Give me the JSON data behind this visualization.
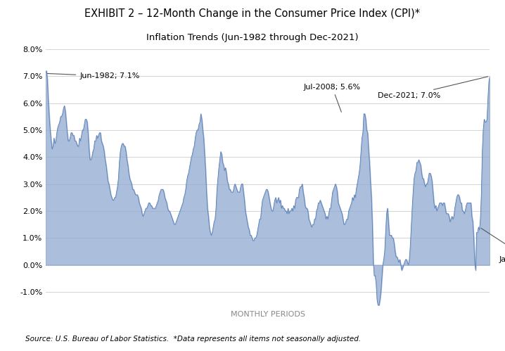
{
  "title1": "EXHIBIT 2 – 12-Month Change in the Consumer Price Index (CPI)*",
  "title2": "Inflation Trends (Jun-1982 through Dec-2021)",
  "xlabel": "MONTHLY PERIODS",
  "source": "Source: U.S. Bureau of Labor Statistics.  *Data represents all items not seasonally adjusted.",
  "ylim": [
    -1.5,
    8.0
  ],
  "yticks": [
    -1.0,
    0.0,
    1.0,
    2.0,
    3.0,
    4.0,
    5.0,
    6.0,
    7.0,
    8.0
  ],
  "fill_color": "#8fa8d0",
  "line_color": "#5b80b8",
  "cpi_data": [
    7.1,
    7.2,
    6.9,
    6.1,
    5.5,
    5.0,
    4.6,
    4.3,
    4.4,
    4.7,
    4.5,
    4.6,
    4.9,
    5.1,
    5.2,
    5.3,
    5.5,
    5.5,
    5.6,
    5.8,
    5.9,
    5.7,
    5.3,
    4.9,
    4.6,
    4.6,
    4.7,
    4.9,
    4.9,
    4.8,
    4.8,
    4.6,
    4.6,
    4.5,
    4.4,
    4.4,
    4.7,
    4.6,
    4.8,
    5.0,
    5.0,
    5.2,
    5.4,
    5.4,
    5.3,
    4.9,
    4.3,
    3.9,
    3.9,
    4.0,
    4.2,
    4.3,
    4.6,
    4.6,
    4.8,
    4.7,
    4.8,
    4.9,
    4.9,
    4.6,
    4.5,
    4.4,
    4.2,
    3.9,
    3.7,
    3.4,
    3.1,
    3.0,
    2.8,
    2.6,
    2.5,
    2.4,
    2.4,
    2.5,
    2.5,
    2.7,
    2.9,
    3.2,
    3.8,
    4.2,
    4.4,
    4.5,
    4.5,
    4.4,
    4.4,
    4.2,
    3.9,
    3.7,
    3.4,
    3.2,
    3.1,
    3.0,
    2.8,
    2.8,
    2.7,
    2.6,
    2.6,
    2.6,
    2.5,
    2.3,
    2.2,
    2.1,
    1.9,
    1.8,
    1.9,
    2.0,
    2.1,
    2.1,
    2.2,
    2.3,
    2.3,
    2.2,
    2.2,
    2.1,
    2.1,
    2.1,
    2.1,
    2.2,
    2.3,
    2.4,
    2.6,
    2.7,
    2.8,
    2.8,
    2.8,
    2.7,
    2.5,
    2.4,
    2.3,
    2.1,
    2.0,
    2.0,
    1.9,
    1.8,
    1.7,
    1.6,
    1.5,
    1.5,
    1.6,
    1.7,
    1.8,
    1.9,
    2.0,
    2.1,
    2.2,
    2.3,
    2.5,
    2.6,
    2.8,
    3.1,
    3.3,
    3.4,
    3.6,
    3.8,
    4.0,
    4.1,
    4.3,
    4.4,
    4.7,
    4.9,
    5.0,
    5.0,
    5.2,
    5.3,
    5.6,
    5.4,
    5.0,
    4.7,
    4.1,
    3.5,
    2.7,
    2.1,
    1.8,
    1.4,
    1.2,
    1.1,
    1.2,
    1.4,
    1.6,
    1.7,
    2.1,
    2.8,
    3.2,
    3.6,
    3.9,
    4.2,
    4.1,
    3.8,
    3.7,
    3.5,
    3.6,
    3.4,
    3.1,
    3.0,
    2.8,
    2.8,
    2.7,
    2.7,
    2.7,
    2.9,
    3.0,
    2.9,
    2.8,
    2.7,
    2.7,
    2.7,
    2.9,
    3.0,
    3.0,
    2.7,
    2.4,
    2.0,
    1.8,
    1.6,
    1.4,
    1.3,
    1.1,
    1.1,
    1.0,
    0.9,
    0.9,
    1.0,
    1.0,
    1.1,
    1.3,
    1.5,
    1.7,
    1.7,
    2.1,
    2.4,
    2.5,
    2.6,
    2.7,
    2.8,
    2.8,
    2.7,
    2.5,
    2.3,
    2.1,
    2.0,
    2.0,
    2.2,
    2.4,
    2.5,
    2.3,
    2.4,
    2.5,
    2.3,
    2.4,
    2.1,
    2.2,
    2.1,
    2.1,
    2.0,
    2.0,
    1.9,
    2.1,
    1.9,
    2.0,
    2.0,
    2.1,
    2.0,
    2.2,
    2.1,
    2.4,
    2.5,
    2.5,
    2.5,
    2.8,
    2.9,
    2.9,
    3.0,
    2.7,
    2.5,
    2.2,
    2.1,
    2.1,
    2.0,
    1.7,
    1.6,
    1.5,
    1.4,
    1.5,
    1.5,
    1.7,
    1.7,
    2.0,
    2.1,
    2.3,
    2.3,
    2.4,
    2.3,
    2.2,
    2.1,
    2.0,
    1.9,
    1.7,
    1.8,
    1.7,
    1.9,
    2.1,
    2.1,
    2.4,
    2.7,
    2.8,
    2.9,
    3.0,
    2.9,
    2.7,
    2.3,
    2.2,
    2.1,
    2.0,
    1.9,
    1.7,
    1.5,
    1.5,
    1.6,
    1.7,
    1.7,
    2.0,
    2.1,
    2.2,
    2.3,
    2.5,
    2.4,
    2.6,
    2.5,
    2.8,
    3.0,
    3.2,
    3.4,
    3.7,
    4.2,
    4.7,
    4.9,
    5.6,
    5.6,
    5.4,
    5.0,
    4.9,
    4.3,
    3.8,
    3.1,
    2.5,
    1.5,
    0.1,
    -0.4,
    -0.4,
    -0.7,
    -1.3,
    -1.5,
    -1.5,
    -1.3,
    -1.0,
    -0.5,
    0.0,
    0.2,
    0.5,
    1.2,
    1.9,
    2.1,
    1.6,
    1.1,
    1.1,
    1.1,
    1.0,
    1.0,
    0.8,
    0.5,
    0.3,
    0.3,
    0.2,
    0.1,
    0.2,
    0.0,
    -0.2,
    -0.1,
    0.0,
    0.1,
    0.2,
    0.2,
    0.1,
    0.0,
    0.2,
    0.7,
    1.4,
    2.1,
    2.7,
    3.2,
    3.4,
    3.5,
    3.8,
    3.8,
    3.9,
    3.8,
    3.7,
    3.4,
    3.2,
    3.2,
    3.0,
    2.9,
    3.0,
    3.0,
    3.2,
    3.4,
    3.4,
    3.3,
    3.1,
    2.7,
    2.3,
    2.1,
    2.2,
    2.0,
    2.1,
    2.2,
    2.3,
    2.3,
    2.3,
    2.2,
    2.3,
    2.3,
    2.1,
    1.9,
    1.9,
    1.9,
    1.8,
    1.6,
    1.7,
    1.8,
    1.7,
    1.8,
    2.1,
    2.3,
    2.5,
    2.6,
    2.6,
    2.5,
    2.3,
    2.3,
    2.0,
    2.0,
    1.9,
    2.0,
    2.2,
    2.3,
    2.3,
    2.3,
    2.3,
    2.3,
    1.8,
    1.6,
    1.0,
    0.1,
    -0.2,
    1.2,
    1.2,
    1.4,
    1.3,
    1.7,
    2.6,
    4.2,
    5.0,
    5.4,
    5.3,
    5.3,
    5.4,
    6.2,
    6.8,
    7.0
  ]
}
